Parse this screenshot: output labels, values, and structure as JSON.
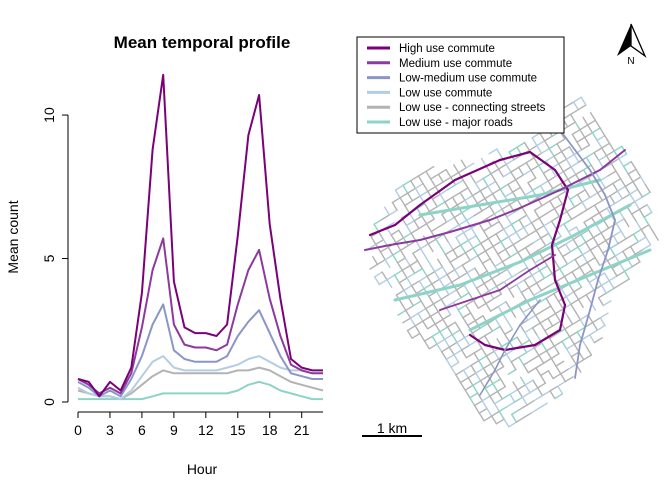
{
  "chart_data": {
    "type": "line",
    "title": "Mean temporal profile",
    "xlabel": "Hour",
    "ylabel": "Mean count",
    "xlim": [
      0,
      23
    ],
    "ylim": [
      0,
      11.5
    ],
    "x_ticks": [
      0,
      3,
      6,
      9,
      12,
      15,
      18,
      21
    ],
    "y_ticks": [
      0,
      5,
      10
    ],
    "grid": false,
    "legend_position": "top-right",
    "x": [
      0,
      1,
      2,
      3,
      4,
      5,
      6,
      7,
      8,
      9,
      10,
      11,
      12,
      13,
      14,
      15,
      16,
      17,
      18,
      19,
      20,
      21,
      22,
      23
    ],
    "series": [
      {
        "name": "High use commute",
        "color": "#7a0177",
        "values": [
          0.8,
          0.7,
          0.2,
          0.7,
          0.4,
          1.2,
          3.8,
          8.8,
          11.4,
          4.2,
          2.6,
          2.4,
          2.4,
          2.3,
          2.7,
          5.8,
          9.3,
          10.7,
          6.2,
          3.6,
          1.5,
          1.2,
          1.1,
          1.1
        ]
      },
      {
        "name": "Medium use commute",
        "color": "#8c3a9e",
        "values": [
          0.8,
          0.6,
          0.3,
          0.5,
          0.3,
          1.0,
          2.6,
          4.6,
          5.7,
          2.7,
          2.0,
          1.9,
          1.9,
          1.8,
          2.0,
          3.4,
          4.6,
          5.3,
          3.6,
          2.3,
          1.3,
          1.1,
          1.0,
          1.0
        ]
      },
      {
        "name": "Low-medium use commute",
        "color": "#8c96c6",
        "values": [
          0.7,
          0.5,
          0.2,
          0.4,
          0.2,
          0.8,
          1.6,
          2.7,
          3.4,
          1.8,
          1.5,
          1.4,
          1.4,
          1.4,
          1.6,
          2.3,
          2.8,
          3.2,
          2.4,
          1.6,
          1.0,
          0.9,
          0.8,
          0.8
        ]
      },
      {
        "name": "Low use commute",
        "color": "#b3cde3",
        "values": [
          0.5,
          0.3,
          0.2,
          0.2,
          0.1,
          0.4,
          0.9,
          1.4,
          1.6,
          1.2,
          1.1,
          1.1,
          1.1,
          1.1,
          1.2,
          1.3,
          1.5,
          1.6,
          1.4,
          1.2,
          1.1,
          1.1,
          1.0,
          1.0
        ]
      },
      {
        "name": "Low use - connecting streets",
        "color": "#b3b3b3",
        "values": [
          0.4,
          0.3,
          0.2,
          0.2,
          0.1,
          0.3,
          0.6,
          0.9,
          1.1,
          1.0,
          1.0,
          1.0,
          1.0,
          1.0,
          1.0,
          1.1,
          1.1,
          1.2,
          1.1,
          0.9,
          0.7,
          0.6,
          0.5,
          0.4
        ]
      },
      {
        "name": "Low use - major roads",
        "color": "#8dd3c7",
        "values": [
          0.1,
          0.1,
          0.1,
          0.1,
          0.1,
          0.1,
          0.1,
          0.2,
          0.3,
          0.3,
          0.3,
          0.3,
          0.3,
          0.3,
          0.3,
          0.4,
          0.6,
          0.7,
          0.6,
          0.4,
          0.3,
          0.2,
          0.1,
          0.1
        ]
      }
    ]
  },
  "map": {
    "scale_label": "1 km",
    "north_label": "N"
  }
}
